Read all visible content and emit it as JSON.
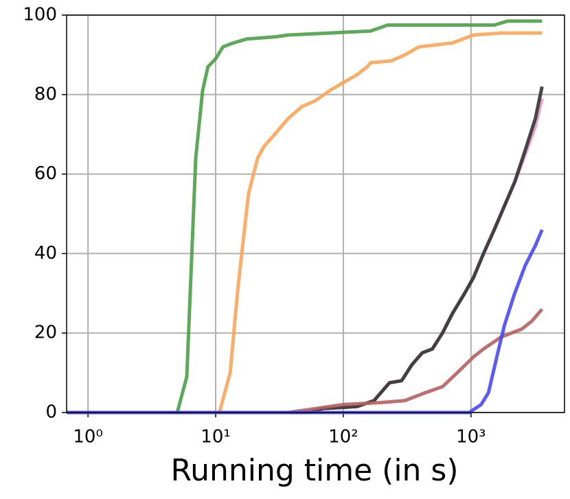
{
  "chart_data": {
    "type": "line",
    "xlabel": "Running time (in s)",
    "xscale": "log",
    "grid": true,
    "xlim": [
      0.68,
      5400
    ],
    "ylim": [
      0,
      100
    ],
    "xticks": [
      {
        "value": 1,
        "label": "10⁰"
      },
      {
        "value": 10,
        "label": "10¹"
      },
      {
        "value": 100,
        "label": "10²"
      },
      {
        "value": 1000,
        "label": "10³"
      }
    ],
    "yticks": [
      0,
      20,
      40,
      60,
      80,
      100
    ],
    "series": [
      {
        "color": "#4c9f47",
        "x": [
          0.68,
          5.0,
          5.94,
          6.98,
          7.9,
          8.7,
          10,
          11.4,
          13.8,
          17.6,
          29,
          37,
          78,
          163,
          223,
          1520,
          1940,
          3600
        ],
        "values": [
          0,
          0,
          9,
          64,
          81,
          87,
          89,
          92,
          93,
          94,
          94.5,
          95,
          95.5,
          96,
          97.5,
          97.5,
          98.5,
          98.5
        ]
      },
      {
        "color": "#f9a55a",
        "x": [
          0.68,
          10.7,
          13,
          14.8,
          16,
          18.1,
          21.3,
          24,
          29,
          37,
          47.5,
          60.8,
          78,
          100,
          128,
          154,
          163,
          238,
          304,
          391,
          718,
          1047,
          1721,
          3600
        ],
        "values": [
          0,
          0,
          10,
          30,
          40,
          55,
          64,
          67,
          70,
          74,
          77,
          78.5,
          81,
          83,
          85,
          87,
          88,
          88.5,
          90,
          92,
          93,
          95,
          95.5,
          95.5
        ]
      },
      {
        "color": "#e89ac9",
        "x": [
          0.68,
          48,
          69,
          128,
          174,
          197,
          230,
          286,
          344,
          415,
          498,
          598,
          718,
          892,
          1047,
          1254,
          1520,
          1830,
          2200,
          2660,
          3194,
          3600
        ],
        "values": [
          0,
          0,
          1,
          1.5,
          3,
          5,
          7.5,
          8,
          12,
          15,
          16,
          20,
          25,
          30,
          34,
          40,
          46,
          52,
          58,
          65,
          72,
          79
        ]
      },
      {
        "color": "#333333",
        "x": [
          0.68,
          53.8,
          69,
          128,
          174,
          197,
          230,
          286,
          344,
          415,
          498,
          598,
          718,
          892,
          1047,
          1254,
          1520,
          1830,
          2200,
          2660,
          3194,
          3600
        ],
        "values": [
          0,
          0,
          1,
          1.5,
          3,
          5,
          7.5,
          8,
          12,
          15,
          16,
          20,
          25,
          30,
          34,
          40,
          46,
          52,
          58,
          66,
          74,
          82
        ]
      },
      {
        "color": "#b56060",
        "x": [
          0.68,
          37,
          61,
          100,
          197,
          304,
          441,
          598,
          780,
          1047,
          1254,
          1721,
          2500,
          3000,
          3600
        ],
        "values": [
          0,
          0,
          1,
          2,
          2.5,
          3,
          5,
          6.5,
          10,
          14,
          16,
          19,
          21,
          23,
          26
        ]
      },
      {
        "color": "#4a4af0",
        "x": [
          0.68,
          967,
          1200,
          1370,
          1620,
          1830,
          2200,
          2660,
          3194,
          3600
        ],
        "values": [
          0,
          0,
          2,
          5,
          15,
          22,
          30,
          37,
          42,
          46
        ]
      }
    ]
  }
}
